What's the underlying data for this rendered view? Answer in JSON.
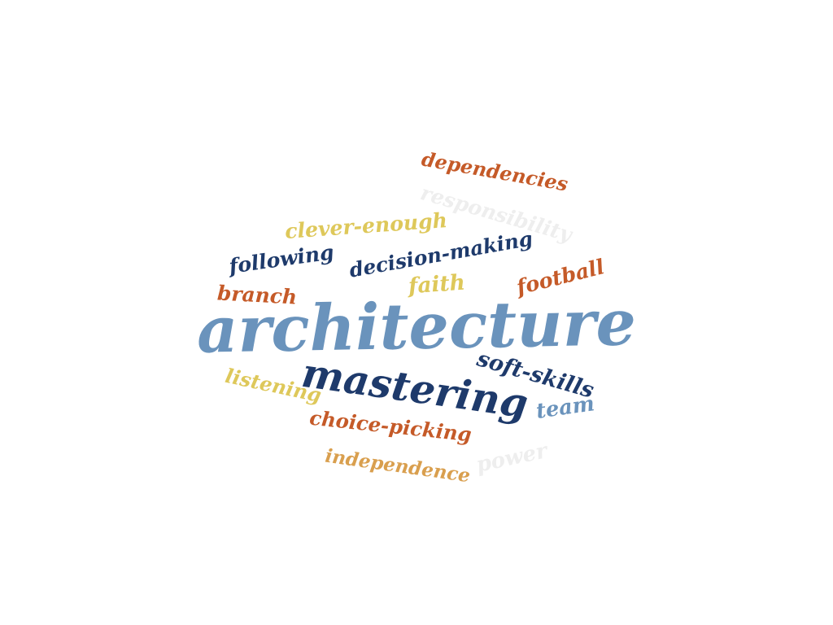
{
  "palette": {
    "light_blue": "#6a93bc",
    "navy": "#1e3a6b",
    "rust": "#c55a28",
    "mustard": "#dec85a",
    "tan": "#d99f4e",
    "light_gray": "#eeeeee"
  },
  "words": [
    {
      "text": "architecture",
      "color": "#6a93bc"
    },
    {
      "text": "mastering",
      "color": "#1e3a6b"
    },
    {
      "text": "dependencies",
      "color": "#c55a28"
    },
    {
      "text": "responsibility",
      "color": "#eeeeee"
    },
    {
      "text": "clever-enough",
      "color": "#dec85a"
    },
    {
      "text": "following",
      "color": "#1e3a6b"
    },
    {
      "text": "decision-making",
      "color": "#1e3a6b"
    },
    {
      "text": "branch",
      "color": "#c55a28"
    },
    {
      "text": "faith",
      "color": "#dec85a"
    },
    {
      "text": "football",
      "color": "#c55a28"
    },
    {
      "text": "soft-skills",
      "color": "#1e3a6b"
    },
    {
      "text": "listening",
      "color": "#dec85a"
    },
    {
      "text": "team",
      "color": "#6a93bc"
    },
    {
      "text": "choice-picking",
      "color": "#c55a28"
    },
    {
      "text": "independence",
      "color": "#d99f4e"
    },
    {
      "text": "power",
      "color": "#eeeeee"
    }
  ]
}
